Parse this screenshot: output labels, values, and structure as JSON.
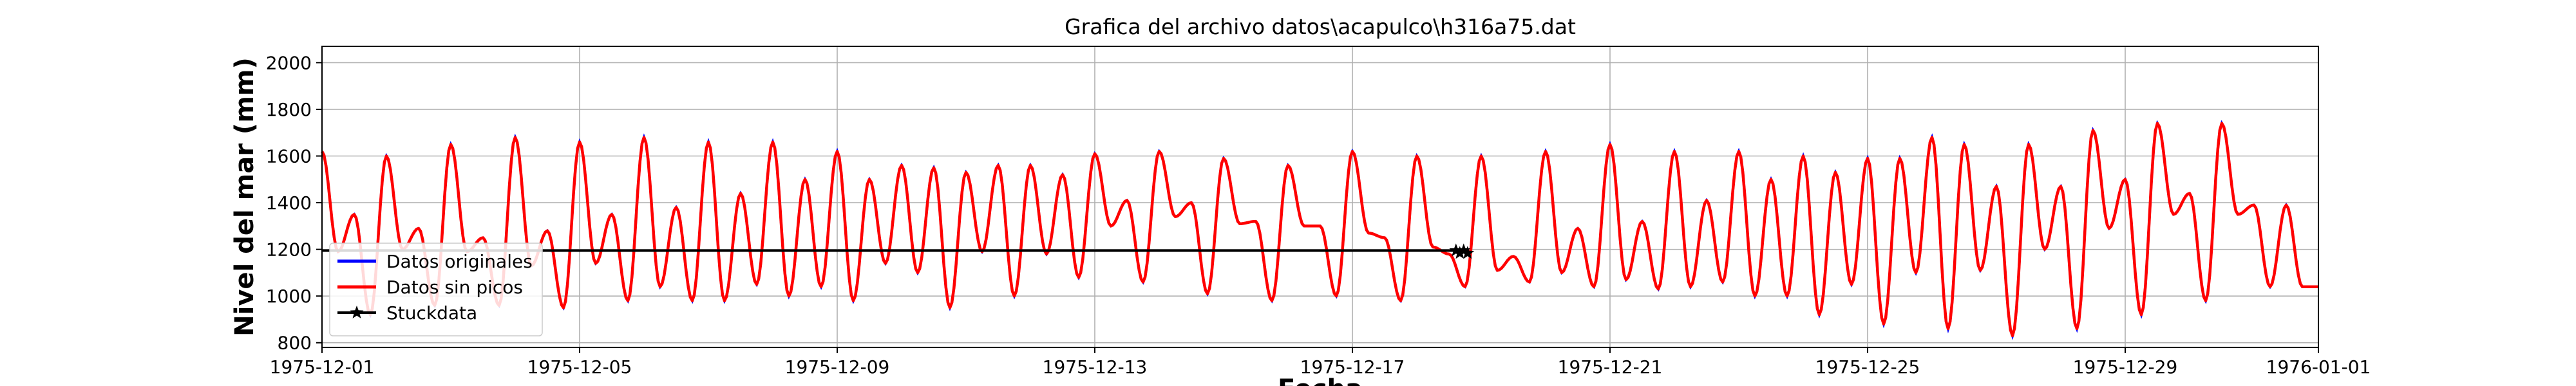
{
  "chart_data": {
    "type": "line",
    "title": "Grafica del archivo datos\\acapulco\\h316a75.dat",
    "xlabel": "Fecha",
    "ylabel": "Nivel del mar (mm)",
    "xlim": [
      "1975-12-01",
      "1976-01-01"
    ],
    "ylim": [
      780,
      2070
    ],
    "x_ticks": [
      "1975-12-01",
      "1975-12-05",
      "1975-12-09",
      "1975-12-13",
      "1975-12-17",
      "1975-12-21",
      "1975-12-25",
      "1975-12-29",
      "1976-01-01"
    ],
    "y_ticks": [
      800,
      1000,
      1200,
      1400,
      1600,
      1800,
      2000
    ],
    "grid": true,
    "legend_position": "lower-left",
    "legend": [
      "Datos originales",
      "Datos sin picos",
      "Stuckdata"
    ],
    "series_style": {
      "Datos originales": "#0000ff",
      "Datos sin picos": "#ff0000",
      "Stuckdata": "#000000"
    },
    "daily_extremes": [
      {
        "date": "1975-12-01",
        "high1": 1620,
        "low1": 1190,
        "high2": 1350,
        "low2": 920
      },
      {
        "date": "1975-12-02",
        "high1": 1600,
        "low1": 1200,
        "high2": 1290,
        "low2": 960
      },
      {
        "date": "1975-12-03",
        "high1": 1650,
        "low1": 1190,
        "high2": 1250,
        "low2": 960
      },
      {
        "date": "1975-12-04",
        "high1": 1680,
        "low1": 1130,
        "high2": 1280,
        "low2": 950
      },
      {
        "date": "1975-12-05",
        "high1": 1660,
        "low1": 1140,
        "high2": 1350,
        "low2": 980
      },
      {
        "date": "1975-12-06",
        "high1": 1680,
        "low1": 1040,
        "high2": 1380,
        "low2": 980
      },
      {
        "date": "1975-12-07",
        "high1": 1660,
        "low1": 980,
        "high2": 1440,
        "low2": 1050
      },
      {
        "date": "1975-12-08",
        "high1": 1660,
        "low1": 1000,
        "high2": 1500,
        "low2": 1040
      },
      {
        "date": "1975-12-09",
        "high1": 1620,
        "low1": 980,
        "high2": 1500,
        "low2": 1140
      },
      {
        "date": "1975-12-10",
        "high1": 1560,
        "low1": 1100,
        "high2": 1550,
        "low2": 950
      },
      {
        "date": "1975-12-11",
        "high1": 1530,
        "low1": 1190,
        "high2": 1560,
        "low2": 1000
      },
      {
        "date": "1975-12-12",
        "high1": 1560,
        "low1": 1180,
        "high2": 1520,
        "low2": 1080
      },
      {
        "date": "1975-12-13",
        "high1": 1610,
        "low1": 1300,
        "high2": 1410,
        "low2": 1060
      },
      {
        "date": "1975-12-14",
        "high1": 1620,
        "low1": 1340,
        "high2": 1400,
        "low2": 1010
      },
      {
        "date": "1975-12-15",
        "high1": 1590,
        "low1": 1310,
        "high2": 1320,
        "low2": 980
      },
      {
        "date": "1975-12-16",
        "high1": 1560,
        "low1": 1300,
        "high2": 1300,
        "low2": 1000
      },
      {
        "date": "1975-12-17",
        "high1": 1620,
        "low1": 1270,
        "high2": 1250,
        "low2": 980
      },
      {
        "date": "1975-12-18",
        "high1": 1600,
        "low1": 1210,
        "high2": 1180,
        "low2": 1040
      },
      {
        "date": "1975-12-19",
        "high1": 1600,
        "low1": 1110,
        "high2": 1170,
        "low2": 1060
      },
      {
        "date": "1975-12-20",
        "high1": 1620,
        "low1": 1100,
        "high2": 1290,
        "low2": 1040
      },
      {
        "date": "1975-12-21",
        "high1": 1650,
        "low1": 1070,
        "high2": 1320,
        "low2": 1030
      },
      {
        "date": "1975-12-22",
        "high1": 1620,
        "low1": 1040,
        "high2": 1410,
        "low2": 1060
      },
      {
        "date": "1975-12-23",
        "high1": 1620,
        "low1": 1000,
        "high2": 1500,
        "low2": 1000
      },
      {
        "date": "1975-12-24",
        "high1": 1600,
        "low1": 920,
        "high2": 1530,
        "low2": 1050
      },
      {
        "date": "1975-12-25",
        "high1": 1590,
        "low1": 880,
        "high2": 1590,
        "low2": 1100
      },
      {
        "date": "1975-12-26",
        "high1": 1680,
        "low1": 860,
        "high2": 1650,
        "low2": 1110
      },
      {
        "date": "1975-12-27",
        "high1": 1470,
        "low1": 830,
        "high2": 1650,
        "low2": 1200
      },
      {
        "date": "1975-12-28",
        "high1": 1470,
        "low1": 860,
        "high2": 1710,
        "low2": 1290
      },
      {
        "date": "1975-12-29",
        "high1": 1500,
        "low1": 920,
        "high2": 1740,
        "low2": 1350
      },
      {
        "date": "1975-12-30",
        "high1": 1440,
        "low1": 980,
        "high2": 1740,
        "low2": 1350
      },
      {
        "date": "1975-12-31",
        "high1": 1390,
        "low1": 1040,
        "high2": 1390,
        "low2": 1040
      }
    ],
    "stuckdata": {
      "x": [
        "1975-12-01",
        "1975-12-18 17:00"
      ],
      "y": [
        1195,
        1195
      ]
    }
  }
}
